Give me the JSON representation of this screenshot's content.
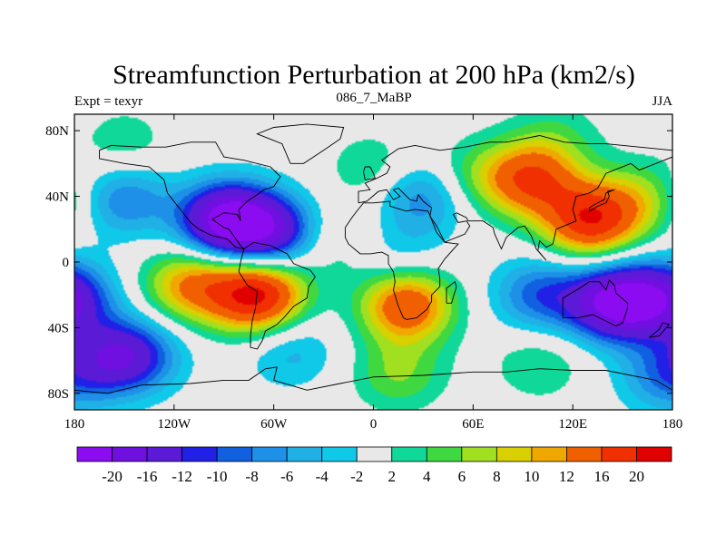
{
  "chart_data": {
    "type": "heatmap",
    "title": "Streamfunction Perturbation at 200 hPa (km2/s)",
    "left_label": "Expt = texyr",
    "center_label": "086_7_MaBP",
    "right_label": "JJA",
    "xlim": [
      -180,
      180
    ],
    "ylim": [
      -90,
      90
    ],
    "x_ticks": [
      {
        "value": -180,
        "label": "180"
      },
      {
        "value": -120,
        "label": "120W"
      },
      {
        "value": -60,
        "label": "60W"
      },
      {
        "value": 0,
        "label": "0"
      },
      {
        "value": 60,
        "label": "60E"
      },
      {
        "value": 120,
        "label": "120E"
      },
      {
        "value": 180,
        "label": "180"
      }
    ],
    "y_ticks": [
      {
        "value": 80,
        "label": "80N"
      },
      {
        "value": 40,
        "label": "40N"
      },
      {
        "value": 0,
        "label": "0"
      },
      {
        "value": -40,
        "label": "40S"
      },
      {
        "value": -80,
        "label": "80S"
      }
    ],
    "colorbar": {
      "labels": [
        "-20",
        "-16",
        "-12",
        "-10",
        "-8",
        "-6",
        "-4",
        "-2",
        "2",
        "4",
        "6",
        "8",
        "10",
        "12",
        "16",
        "20"
      ],
      "colors": [
        "#8c0cf2",
        "#7010e0",
        "#5a1ad6",
        "#2020e6",
        "#1060e0",
        "#1e90e8",
        "#20b0e6",
        "#10c8e8",
        "#e8e8e8",
        "#10d898",
        "#40d840",
        "#a0e020",
        "#d8d000",
        "#f0a800",
        "#f06000",
        "#f03000",
        "#e00000"
      ]
    },
    "field_centers": [
      {
        "lon": -88,
        "lat": 25,
        "value": -22
      },
      {
        "lon": -60,
        "lat": 18,
        "value": -14
      },
      {
        "lon": -150,
        "lat": 38,
        "value": -8
      },
      {
        "lon": -185,
        "lat": -22,
        "value": -14
      },
      {
        "lon": 145,
        "lat": -25,
        "value": -20
      },
      {
        "lon": 100,
        "lat": -20,
        "value": -9
      },
      {
        "lon": -70,
        "lat": -20,
        "value": 21
      },
      {
        "lon": -110,
        "lat": -14,
        "value": 12
      },
      {
        "lon": 20,
        "lat": -26,
        "value": 16
      },
      {
        "lon": 95,
        "lat": 50,
        "value": 15
      },
      {
        "lon": 130,
        "lat": 25,
        "value": 18
      },
      {
        "lon": 160,
        "lat": 38,
        "value": 7
      },
      {
        "lon": 60,
        "lat": 52,
        "value": 5
      },
      {
        "lon": -150,
        "lat": 72,
        "value": 3.5
      },
      {
        "lon": 110,
        "lat": 76,
        "value": 3.5
      },
      {
        "lon": 0,
        "lat": 57,
        "value": 4
      },
      {
        "lon": -25,
        "lat": 12,
        "value": 4
      },
      {
        "lon": 30,
        "lat": 40,
        "value": -8
      },
      {
        "lon": 15,
        "lat": 2,
        "value": -4
      },
      {
        "lon": -145,
        "lat": -57,
        "value": -11
      },
      {
        "lon": -50,
        "lat": -54,
        "value": -5
      },
      {
        "lon": -160,
        "lat": -58,
        "value": -6
      },
      {
        "lon": 15,
        "lat": -68,
        "value": 6
      },
      {
        "lon": 100,
        "lat": -62,
        "value": 4
      },
      {
        "lon": 175,
        "lat": -70,
        "value": -7
      }
    ],
    "coast_outlines": [
      {
        "name": "north-america",
        "points": [
          [
            -165,
            63
          ],
          [
            -150,
            60
          ],
          [
            -135,
            58
          ],
          [
            -126,
            50
          ],
          [
            -124,
            42
          ],
          [
            -117,
            33
          ],
          [
            -110,
            24
          ],
          [
            -105,
            20
          ],
          [
            -97,
            16
          ],
          [
            -88,
            14
          ],
          [
            -83,
            9
          ],
          [
            -78,
            8
          ],
          [
            -80,
            10
          ],
          [
            -87,
            20
          ],
          [
            -90,
            21
          ],
          [
            -97,
            26
          ],
          [
            -90,
            30
          ],
          [
            -82,
            29
          ],
          [
            -80,
            25
          ],
          [
            -81,
            32
          ],
          [
            -76,
            37
          ],
          [
            -70,
            41
          ],
          [
            -66,
            44
          ],
          [
            -60,
            46
          ],
          [
            -56,
            52
          ],
          [
            -62,
            58
          ],
          [
            -78,
            62
          ],
          [
            -90,
            64
          ],
          [
            -95,
            73
          ],
          [
            -110,
            73
          ],
          [
            -125,
            70
          ],
          [
            -140,
            70
          ],
          [
            -158,
            71
          ],
          [
            -165,
            68
          ],
          [
            -165,
            63
          ]
        ]
      },
      {
        "name": "greenland",
        "points": [
          [
            -50,
            60
          ],
          [
            -42,
            60
          ],
          [
            -30,
            68
          ],
          [
            -20,
            75
          ],
          [
            -18,
            82
          ],
          [
            -40,
            84
          ],
          [
            -60,
            82
          ],
          [
            -70,
            78
          ],
          [
            -55,
            72
          ],
          [
            -50,
            60
          ]
        ]
      },
      {
        "name": "south-america",
        "points": [
          [
            -78,
            8
          ],
          [
            -72,
            12
          ],
          [
            -62,
            10
          ],
          [
            -52,
            5
          ],
          [
            -48,
            -1
          ],
          [
            -38,
            -5
          ],
          [
            -35,
            -9
          ],
          [
            -39,
            -15
          ],
          [
            -40,
            -22
          ],
          [
            -48,
            -27
          ],
          [
            -54,
            -34
          ],
          [
            -58,
            -38
          ],
          [
            -65,
            -42
          ],
          [
            -67,
            -48
          ],
          [
            -70,
            -53
          ],
          [
            -74,
            -52
          ],
          [
            -74,
            -45
          ],
          [
            -73,
            -36
          ],
          [
            -71,
            -28
          ],
          [
            -70,
            -18
          ],
          [
            -76,
            -14
          ],
          [
            -81,
            -6
          ],
          [
            -80,
            0
          ],
          [
            -78,
            8
          ]
        ]
      },
      {
        "name": "eurasia",
        "points": [
          [
            -9,
            36
          ],
          [
            -9,
            43
          ],
          [
            -2,
            44
          ],
          [
            -5,
            48
          ],
          [
            2,
            51
          ],
          [
            8,
            54
          ],
          [
            10,
            58
          ],
          [
            5,
            62
          ],
          [
            15,
            69
          ],
          [
            25,
            71
          ],
          [
            40,
            68
          ],
          [
            55,
            70
          ],
          [
            70,
            73
          ],
          [
            80,
            73
          ],
          [
            100,
            77
          ],
          [
            115,
            73
          ],
          [
            130,
            72
          ],
          [
            140,
            72
          ],
          [
            160,
            70
          ],
          [
            180,
            68
          ],
          [
            180,
            64
          ],
          [
            170,
            60
          ],
          [
            160,
            56
          ],
          [
            155,
            60
          ],
          [
            140,
            54
          ],
          [
            135,
            45
          ],
          [
            130,
            42
          ],
          [
            122,
            40
          ],
          [
            120,
            32
          ],
          [
            122,
            25
          ],
          [
            110,
            20
          ],
          [
            108,
            11
          ],
          [
            104,
            9
          ],
          [
            100,
            13
          ],
          [
            99,
            7
          ],
          [
            104,
            1
          ],
          [
            98,
            8
          ],
          [
            95,
            16
          ],
          [
            91,
            22
          ],
          [
            87,
            21
          ],
          [
            80,
            15
          ],
          [
            77,
            8
          ],
          [
            73,
            17
          ],
          [
            72,
            21
          ],
          [
            66,
            25
          ],
          [
            57,
            25
          ],
          [
            56,
            27
          ],
          [
            50,
            30
          ],
          [
            48,
            29
          ],
          [
            51,
            24
          ],
          [
            56,
            25
          ],
          [
            58,
            22
          ],
          [
            55,
            17
          ],
          [
            45,
            13
          ],
          [
            43,
            12
          ],
          [
            38,
            22
          ],
          [
            34,
            28
          ],
          [
            35,
            33
          ],
          [
            30,
            37
          ],
          [
            27,
            41
          ],
          [
            26,
            37
          ],
          [
            22,
            38
          ],
          [
            20,
            40
          ],
          [
            15,
            45
          ],
          [
            12,
            44
          ],
          [
            16,
            40
          ],
          [
            12,
            38
          ],
          [
            8,
            44
          ],
          [
            3,
            43
          ],
          [
            -4,
            37
          ],
          [
            -9,
            36
          ]
        ]
      },
      {
        "name": "africa",
        "points": [
          [
            -17,
            21
          ],
          [
            -17,
            15
          ],
          [
            -15,
            11
          ],
          [
            -8,
            5
          ],
          [
            -2,
            5
          ],
          [
            5,
            6
          ],
          [
            9,
            4
          ],
          [
            9,
            -1
          ],
          [
            12,
            -6
          ],
          [
            13,
            -12
          ],
          [
            12,
            -17
          ],
          [
            15,
            -27
          ],
          [
            18,
            -34
          ],
          [
            20,
            -35
          ],
          [
            26,
            -34
          ],
          [
            32,
            -29
          ],
          [
            35,
            -24
          ],
          [
            35,
            -20
          ],
          [
            40,
            -15
          ],
          [
            40,
            -10
          ],
          [
            39,
            -4
          ],
          [
            43,
            2
          ],
          [
            51,
            11
          ],
          [
            43,
            12
          ],
          [
            38,
            18
          ],
          [
            33,
            31
          ],
          [
            25,
            32
          ],
          [
            20,
            31
          ],
          [
            10,
            34
          ],
          [
            10,
            37
          ],
          [
            0,
            36
          ],
          [
            -6,
            36
          ],
          [
            -10,
            31
          ],
          [
            -13,
            27
          ],
          [
            -17,
            21
          ]
        ]
      },
      {
        "name": "australia",
        "points": [
          [
            114,
            -22
          ],
          [
            114,
            -34
          ],
          [
            123,
            -34
          ],
          [
            132,
            -32
          ],
          [
            138,
            -35
          ],
          [
            146,
            -39
          ],
          [
            150,
            -37
          ],
          [
            153,
            -28
          ],
          [
            153,
            -25
          ],
          [
            146,
            -19
          ],
          [
            145,
            -14
          ],
          [
            142,
            -11
          ],
          [
            140,
            -17
          ],
          [
            136,
            -12
          ],
          [
            130,
            -12
          ],
          [
            124,
            -16
          ],
          [
            114,
            -22
          ]
        ]
      },
      {
        "name": "antarctica",
        "points": [
          [
            -180,
            -78
          ],
          [
            -160,
            -80
          ],
          [
            -140,
            -75
          ],
          [
            -110,
            -74
          ],
          [
            -90,
            -72
          ],
          [
            -75,
            -72
          ],
          [
            -65,
            -65
          ],
          [
            -58,
            -64
          ],
          [
            -60,
            -72
          ],
          [
            -40,
            -78
          ],
          [
            -20,
            -74
          ],
          [
            0,
            -70
          ],
          [
            30,
            -69
          ],
          [
            60,
            -67
          ],
          [
            80,
            -67
          ],
          [
            100,
            -65
          ],
          [
            120,
            -66
          ],
          [
            140,
            -66
          ],
          [
            160,
            -70
          ],
          [
            170,
            -72
          ],
          [
            180,
            -78
          ]
        ]
      },
      {
        "name": "madagascar",
        "points": [
          [
            44,
            -25
          ],
          [
            47,
            -25
          ],
          [
            50,
            -15
          ],
          [
            49,
            -12
          ],
          [
            44,
            -16
          ],
          [
            44,
            -25
          ]
        ]
      },
      {
        "name": "britain",
        "points": [
          [
            -5,
            50
          ],
          [
            1,
            51
          ],
          [
            0,
            54
          ],
          [
            -2,
            58
          ],
          [
            -5,
            58
          ],
          [
            -6,
            55
          ],
          [
            -5,
            50
          ]
        ]
      },
      {
        "name": "japan",
        "points": [
          [
            130,
            31
          ],
          [
            135,
            34
          ],
          [
            140,
            36
          ],
          [
            142,
            40
          ],
          [
            141,
            43
          ],
          [
            145,
            44
          ],
          [
            140,
            42
          ],
          [
            139,
            38
          ],
          [
            133,
            35
          ],
          [
            130,
            33
          ],
          [
            130,
            31
          ]
        ]
      },
      {
        "name": "new-zealand",
        "points": [
          [
            166,
            -46
          ],
          [
            172,
            -41
          ],
          [
            174,
            -37
          ],
          [
            178,
            -38
          ],
          [
            172,
            -45
          ],
          [
            166,
            -46
          ]
        ]
      }
    ]
  }
}
